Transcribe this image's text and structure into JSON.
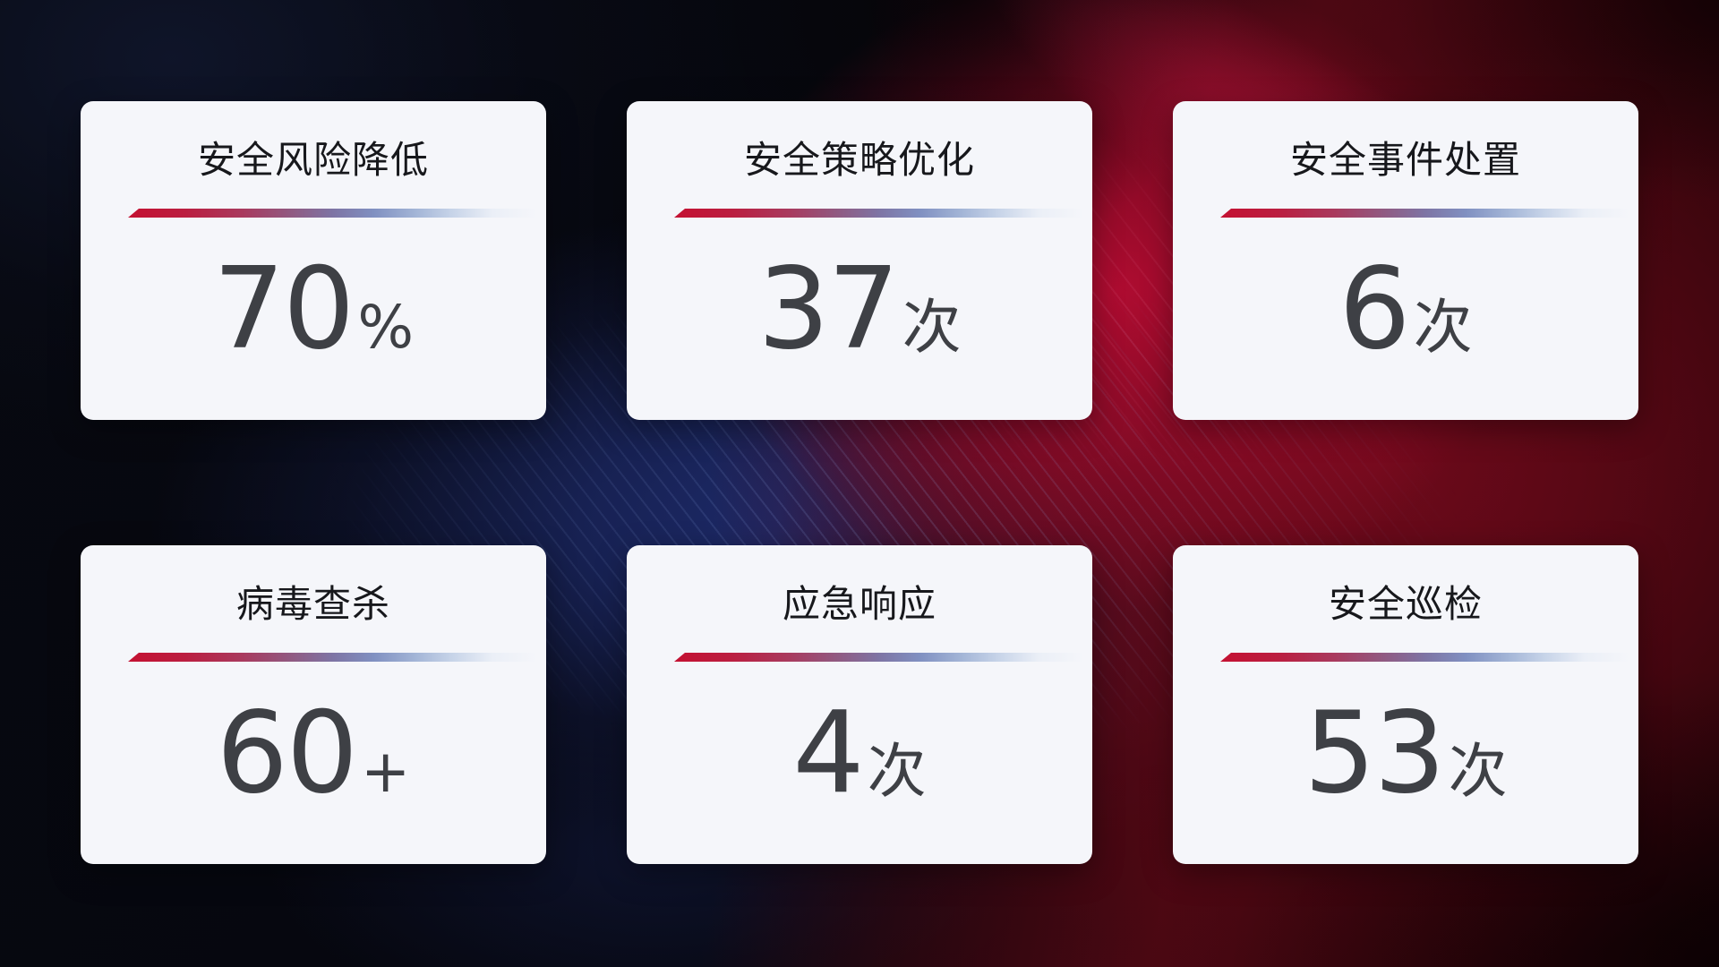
{
  "cards": [
    {
      "title": "安全风险降低",
      "value": "70",
      "unit": "%"
    },
    {
      "title": "安全策略优化",
      "value": "37",
      "unit": "次"
    },
    {
      "title": "安全事件处置",
      "value": "6",
      "unit": "次"
    },
    {
      "title": "病毒查杀",
      "value": "60",
      "unit": "+"
    },
    {
      "title": "应急响应",
      "value": "4",
      "unit": "次"
    },
    {
      "title": "安全巡检",
      "value": "53",
      "unit": "次"
    }
  ],
  "colors": {
    "card_background": "#f5f6fa",
    "title_text": "#17181c",
    "value_text": "#3e4045",
    "divider_red": "#c41132",
    "divider_blue": "#8fa3c9",
    "background_navy": "#1c2763",
    "background_crimson": "#a50e2e",
    "background_maroon": "#2b0406"
  }
}
